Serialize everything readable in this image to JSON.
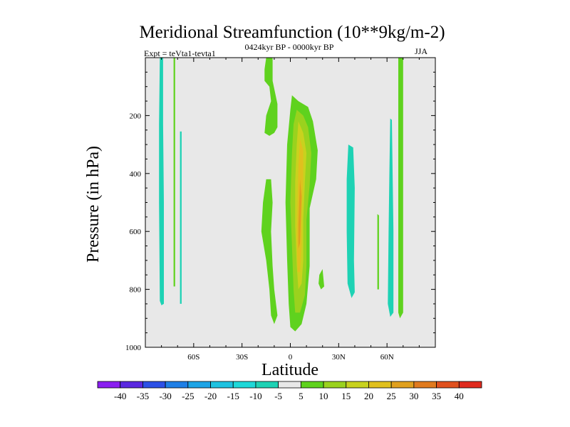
{
  "chart_data": {
    "type": "contour",
    "title": "Meridional Streamfunction (10**9kg/m-2)",
    "subtitle_left": "Expt = teVta1-tevta1",
    "subtitle_center": "0424kyr BP - 0000kyr BP",
    "subtitle_right": "JJA",
    "xlabel": "Latitude",
    "ylabel": "Pressure (in hPa)",
    "xlim": [
      -90,
      90
    ],
    "ylim": [
      1000,
      0
    ],
    "x_ticks": [
      {
        "value": -60,
        "label": "60S"
      },
      {
        "value": -30,
        "label": "30S"
      },
      {
        "value": 0,
        "label": "0"
      },
      {
        "value": 30,
        "label": "30N"
      },
      {
        "value": 60,
        "label": "60N"
      }
    ],
    "y_ticks": [
      {
        "value": 200,
        "label": "200"
      },
      {
        "value": 400,
        "label": "400"
      },
      {
        "value": 600,
        "label": "600"
      },
      {
        "value": 800,
        "label": "800"
      },
      {
        "value": 1000,
        "label": "1000"
      }
    ],
    "background_color": "#e8e8e8",
    "colorbar": {
      "labels": [
        "-40",
        "-35",
        "-30",
        "-25",
        "-20",
        "-15",
        "-10",
        "-5",
        "5",
        "10",
        "15",
        "20",
        "25",
        "30",
        "35",
        "40"
      ],
      "colors": [
        "#8a1ff0",
        "#5a28e0",
        "#2c50e6",
        "#1f7fe6",
        "#1ea4e6",
        "#1ec2e0",
        "#1ed8d8",
        "#1ed2b4",
        "#e8e8e8",
        "#5fd21e",
        "#9ad21e",
        "#c8d21e",
        "#e0c01e",
        "#e0a01e",
        "#e07a1e",
        "#e0501e",
        "#e02a1e"
      ]
    },
    "regions": [
      {
        "name": "cyan-band-70s",
        "level": -5,
        "points": [
          [
            -81,
            0
          ],
          [
            -79,
            0
          ],
          [
            -79,
            230
          ],
          [
            -78.5,
            500
          ],
          [
            -78.5,
            850
          ],
          [
            -80,
            855
          ],
          [
            -81,
            840
          ],
          [
            -81.5,
            500
          ],
          [
            -81.5,
            230
          ]
        ]
      },
      {
        "name": "green-band-72s",
        "level": 5,
        "points": [
          [
            -72.5,
            0
          ],
          [
            -71.5,
            0
          ],
          [
            -71.5,
            400
          ],
          [
            -71.5,
            790
          ],
          [
            -72.5,
            790
          ],
          [
            -72.5,
            400
          ]
        ]
      },
      {
        "name": "cyan-band-67s",
        "level": -5,
        "points": [
          [
            -68.5,
            255
          ],
          [
            -67.5,
            255
          ],
          [
            -67.5,
            600
          ],
          [
            -67.5,
            850
          ],
          [
            -68.5,
            850
          ],
          [
            -68.5,
            600
          ]
        ]
      },
      {
        "name": "green-equatorial-cell",
        "level": 5,
        "points": [
          [
            -14,
            0
          ],
          [
            -11,
            0
          ],
          [
            -11,
            80
          ],
          [
            -8,
            160
          ],
          [
            -8,
            240
          ],
          [
            -10,
            260
          ],
          [
            -13,
            270
          ],
          [
            -16,
            260
          ],
          [
            -15,
            200
          ],
          [
            -12,
            150
          ],
          [
            -13,
            100
          ],
          [
            -16,
            80
          ],
          [
            -16,
            40
          ],
          [
            -15,
            0
          ]
        ]
      },
      {
        "name": "green-equatorial-lower",
        "level": 5,
        "points": [
          [
            -15,
            420
          ],
          [
            -12,
            420
          ],
          [
            -11,
            500
          ],
          [
            -12,
            600
          ],
          [
            -11,
            720
          ],
          [
            -10,
            800
          ],
          [
            -8,
            890
          ],
          [
            -10,
            920
          ],
          [
            -12,
            890
          ],
          [
            -13,
            800
          ],
          [
            -15,
            700
          ],
          [
            -18,
            600
          ],
          [
            -17,
            500
          ]
        ]
      },
      {
        "name": "green-equatorial-core",
        "level": 5,
        "points": [
          [
            1,
            130
          ],
          [
            5,
            150
          ],
          [
            11,
            170
          ],
          [
            14,
            220
          ],
          [
            17,
            320
          ],
          [
            16,
            420
          ],
          [
            12,
            520
          ],
          [
            12,
            720
          ],
          [
            10,
            850
          ],
          [
            7,
            920
          ],
          [
            3,
            945
          ],
          [
            0,
            930
          ],
          [
            -1,
            850
          ],
          [
            -2,
            700
          ],
          [
            -3,
            500
          ],
          [
            -2,
            300
          ],
          [
            0,
            180
          ]
        ]
      },
      {
        "name": "yellow-core",
        "level": 10,
        "points": [
          [
            4,
            180
          ],
          [
            8,
            200
          ],
          [
            11,
            240
          ],
          [
            13,
            330
          ],
          [
            12,
            440
          ],
          [
            10,
            560
          ],
          [
            10,
            720
          ],
          [
            9,
            820
          ],
          [
            6,
            880
          ],
          [
            3,
            880
          ],
          [
            2,
            800
          ],
          [
            1,
            650
          ],
          [
            0,
            500
          ],
          [
            1,
            330
          ],
          [
            2,
            230
          ]
        ]
      },
      {
        "name": "gold-core",
        "level": 15,
        "points": [
          [
            5,
            220
          ],
          [
            8,
            260
          ],
          [
            10,
            330
          ],
          [
            9,
            430
          ],
          [
            8,
            560
          ],
          [
            8,
            700
          ],
          [
            7,
            780
          ],
          [
            5,
            800
          ],
          [
            4,
            720
          ],
          [
            3,
            580
          ],
          [
            3,
            430
          ],
          [
            4,
            300
          ]
        ]
      },
      {
        "name": "orange-core",
        "level": 20,
        "points": [
          [
            6,
            280
          ],
          [
            8,
            320
          ],
          [
            8,
            420
          ],
          [
            7,
            530
          ],
          [
            7,
            650
          ],
          [
            6,
            740
          ],
          [
            4.5,
            740
          ],
          [
            4,
            620
          ],
          [
            4.5,
            480
          ],
          [
            5,
            370
          ]
        ]
      },
      {
        "name": "dark-orange-core",
        "level": 25,
        "points": [
          [
            6,
            420
          ],
          [
            7,
            480
          ],
          [
            6.5,
            560
          ],
          [
            6,
            640
          ],
          [
            5,
            660
          ],
          [
            5,
            580
          ],
          [
            5.5,
            500
          ]
        ]
      },
      {
        "name": "green-blob-19n",
        "level": 5,
        "points": [
          [
            18,
            750
          ],
          [
            20,
            730
          ],
          [
            21,
            790
          ],
          [
            19,
            800
          ],
          [
            17.5,
            780
          ]
        ]
      },
      {
        "name": "cyan-band-35n",
        "level": -5,
        "points": [
          [
            36,
            300
          ],
          [
            39,
            310
          ],
          [
            40,
            450
          ],
          [
            39.5,
            700
          ],
          [
            40,
            810
          ],
          [
            38,
            830
          ],
          [
            35.5,
            780
          ],
          [
            35,
            600
          ],
          [
            35,
            420
          ]
        ]
      },
      {
        "name": "green-thin-54n",
        "level": 5,
        "points": [
          [
            54,
            540
          ],
          [
            55,
            545
          ],
          [
            55,
            800
          ],
          [
            54,
            800
          ]
        ]
      },
      {
        "name": "cyan-band-63n",
        "level": -5,
        "points": [
          [
            62,
            210
          ],
          [
            63,
            215
          ],
          [
            64,
            600
          ],
          [
            64,
            880
          ],
          [
            62,
            895
          ],
          [
            60.5,
            850
          ],
          [
            61,
            600
          ],
          [
            61.5,
            380
          ]
        ]
      },
      {
        "name": "green-band-69n",
        "level": 5,
        "points": [
          [
            67,
            0
          ],
          [
            70,
            0
          ],
          [
            70,
            400
          ],
          [
            70,
            880
          ],
          [
            68,
            900
          ],
          [
            67,
            880
          ],
          [
            67,
            400
          ]
        ]
      }
    ]
  }
}
